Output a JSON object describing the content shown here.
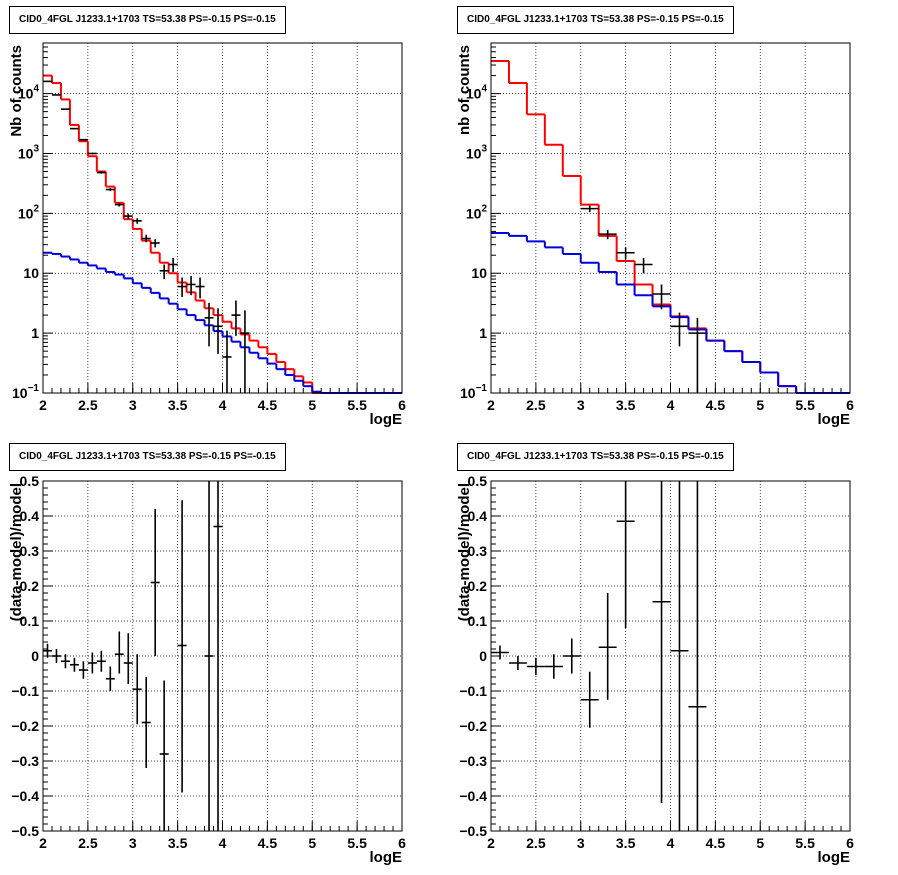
{
  "chart_data": [
    {
      "type": "line",
      "title": "CID0_4FGL J1233.1+1703 TS=53.38 PS=-0.15 PS=-0.15",
      "xlabel": "logE",
      "ylabel": "Nb of counts",
      "xlim": [
        2,
        6
      ],
      "ylim": [
        0.1,
        70000
      ],
      "yscale": "log",
      "grid": true,
      "xticks": [
        "2",
        "2.5",
        "3",
        "3.5",
        "4",
        "4.5",
        "5",
        "5.5",
        "6"
      ],
      "yticks": [
        {
          "v": 0.1,
          "base": "10",
          "exp": "−1"
        },
        {
          "v": 1,
          "label": "1"
        },
        {
          "v": 10,
          "label": "10"
        },
        {
          "v": 100,
          "base": "10",
          "exp": "2"
        },
        {
          "v": 1000,
          "base": "10",
          "exp": "3"
        },
        {
          "v": 10000,
          "base": "10",
          "exp": "4"
        }
      ],
      "bin_width": 0.1,
      "series": [
        {
          "color": "#ff0000",
          "x": [
            2.0,
            2.1,
            2.2,
            2.3,
            2.4,
            2.5,
            2.6,
            2.7,
            2.8,
            2.9,
            3.0,
            3.1,
            3.2,
            3.3,
            3.4,
            3.5,
            3.6,
            3.7,
            3.8,
            3.9,
            4.0,
            4.1,
            4.2,
            4.3,
            4.4,
            4.5,
            4.6,
            4.7,
            4.8,
            4.9,
            5.0
          ],
          "values": [
            20000,
            15000,
            8000,
            3000,
            1600,
            900,
            500,
            280,
            150,
            80,
            55,
            35,
            22,
            15,
            10,
            7,
            4.8,
            3.5,
            2.6,
            2.0,
            1.55,
            1.2,
            0.95,
            0.75,
            0.58,
            0.45,
            0.33,
            0.25,
            0.19,
            0.15,
            0.1
          ]
        },
        {
          "color": "#0000dd",
          "x": [
            2.0,
            2.1,
            2.2,
            2.3,
            2.4,
            2.5,
            2.6,
            2.7,
            2.8,
            2.9,
            3.0,
            3.1,
            3.2,
            3.3,
            3.4,
            3.5,
            3.6,
            3.7,
            3.8,
            3.9,
            4.0,
            4.1,
            4.2,
            4.3,
            4.4,
            4.5,
            4.6,
            4.7,
            4.8,
            4.9,
            5.0,
            5.1,
            5.2,
            5.3,
            5.4,
            5.5,
            5.6,
            5.7,
            5.8,
            5.9
          ],
          "values": [
            22,
            21,
            19,
            17,
            15,
            13.5,
            12,
            10.5,
            9.5,
            8.2,
            6.8,
            5.7,
            4.7,
            3.8,
            3.1,
            2.5,
            2.0,
            1.65,
            1.35,
            1.08,
            0.88,
            0.72,
            0.58,
            0.47,
            0.38,
            0.31,
            0.25,
            0.2,
            0.16,
            0.13,
            0.105,
            0.1,
            0.1,
            0.1,
            0.1,
            0.1,
            0.1,
            0.1,
            0.1,
            0.1
          ]
        }
      ],
      "points": {
        "x": [
          2.05,
          2.15,
          2.25,
          2.35,
          2.45,
          2.55,
          2.65,
          2.75,
          2.85,
          2.95,
          3.05,
          3.15,
          3.25,
          3.35,
          3.45,
          3.55,
          3.65,
          3.75,
          3.85,
          3.95,
          4.05,
          4.15,
          4.25
        ],
        "y": [
          16000,
          9500,
          5500,
          2600,
          1700,
          1000,
          480,
          250,
          140,
          90,
          75,
          38,
          32,
          11,
          14,
          6,
          6.5,
          6,
          1.8,
          1.3,
          0.4,
          2.0,
          1.0
        ],
        "y_lo": [
          15800,
          9400,
          5400,
          2550,
          1660,
          970,
          460,
          235,
          130,
          81,
          67,
          33,
          27,
          8,
          10.5,
          4,
          4.3,
          3.8,
          0.6,
          0.45,
          0.1,
          0.9,
          0.1
        ],
        "y_hi": [
          16200,
          9600,
          5600,
          2650,
          1740,
          1030,
          500,
          265,
          150,
          99,
          83,
          44,
          37,
          14,
          18,
          8.5,
          9,
          8.5,
          3.2,
          2.6,
          1.1,
          3.5,
          2.4
        ]
      }
    },
    {
      "type": "line",
      "title": "CID0_4FGL J1233.1+1703 TS=53.38 PS=-0.15 PS=-0.15",
      "xlabel": "logE",
      "ylabel": "nb of counts",
      "xlim": [
        2,
        6
      ],
      "ylim": [
        0.1,
        70000
      ],
      "yscale": "log",
      "grid": true,
      "xticks": [
        "2",
        "2.5",
        "3",
        "3.5",
        "4",
        "4.5",
        "5",
        "5.5",
        "6"
      ],
      "yticks": [
        {
          "v": 0.1,
          "base": "10",
          "exp": "−1"
        },
        {
          "v": 1,
          "label": "1"
        },
        {
          "v": 10,
          "label": "10"
        },
        {
          "v": 100,
          "base": "10",
          "exp": "2"
        },
        {
          "v": 1000,
          "base": "10",
          "exp": "3"
        },
        {
          "v": 10000,
          "base": "10",
          "exp": "4"
        }
      ],
      "bin_width": 0.2,
      "series": [
        {
          "color": "#ff0000",
          "x": [
            2.0,
            2.2,
            2.4,
            2.6,
            2.8,
            3.0,
            3.2,
            3.4,
            3.6,
            3.8,
            4.0,
            4.2,
            4.4,
            4.6,
            4.8,
            5.0,
            5.2,
            5.4,
            5.6,
            5.8
          ],
          "values": [
            35000,
            15000,
            4500,
            1400,
            420,
            140,
            42,
            16,
            6.5,
            3.0,
            1.9,
            1.2,
            0.75,
            0.5,
            0.33,
            0.22,
            0.13,
            0.1,
            0.1,
            0.1
          ]
        },
        {
          "color": "#0000dd",
          "x": [
            2.0,
            2.2,
            2.4,
            2.6,
            2.8,
            3.0,
            3.2,
            3.4,
            3.6,
            3.8,
            4.0,
            4.2,
            4.4,
            4.6,
            4.8,
            5.0,
            5.2,
            5.4,
            5.6,
            5.8
          ],
          "values": [
            47,
            42,
            34,
            27,
            21,
            15,
            10.5,
            6.5,
            4.3,
            2.8,
            1.85,
            1.15,
            0.75,
            0.5,
            0.33,
            0.22,
            0.13,
            0.1,
            0.1,
            0.1
          ]
        }
      ],
      "points": {
        "x": [
          3.1,
          3.3,
          3.5,
          3.7,
          3.9,
          4.1,
          4.3
        ],
        "y": [
          120,
          45,
          22,
          14,
          4.5,
          1.3,
          1.0
        ],
        "y_lo": [
          105,
          37,
          17,
          10,
          2.5,
          0.6,
          0.1
        ],
        "y_hi": [
          135,
          53,
          27,
          18,
          6.5,
          2.2,
          1.8
        ]
      }
    },
    {
      "type": "scatter",
      "title": "CID0_4FGL J1233.1+1703 TS=53.38 PS=-0.15 PS=-0.15",
      "xlabel": "logE",
      "ylabel": "(data-model)/model",
      "xlim": [
        2,
        6
      ],
      "ylim": [
        -0.5,
        0.5
      ],
      "yscale": "linear",
      "grid": true,
      "xticks": [
        "2",
        "2.5",
        "3",
        "3.5",
        "4",
        "4.5",
        "5",
        "5.5",
        "6"
      ],
      "yticks": [
        "−0.5",
        "−0.4",
        "−0.3",
        "−0.2",
        "−0.1",
        "0",
        "0.1",
        "0.2",
        "0.3",
        "0.4",
        "0.5"
      ],
      "bin_width": 0.1,
      "points": {
        "x": [
          2.05,
          2.15,
          2.25,
          2.35,
          2.45,
          2.55,
          2.65,
          2.75,
          2.85,
          2.95,
          3.05,
          3.15,
          3.25,
          3.35,
          3.55,
          3.85,
          3.95
        ],
        "y": [
          0.015,
          0.0,
          -0.015,
          -0.025,
          -0.04,
          -0.02,
          -0.015,
          -0.065,
          0.005,
          -0.02,
          -0.095,
          -0.19,
          0.21,
          -0.28,
          0.03,
          0.0,
          0.37
        ],
        "y_lo": [
          -0.005,
          -0.02,
          -0.035,
          -0.045,
          -0.065,
          -0.05,
          -0.045,
          -0.1,
          -0.05,
          -0.08,
          -0.195,
          -0.32,
          0.0,
          -0.5,
          -0.39,
          -0.5,
          -0.5
        ],
        "y_hi": [
          0.035,
          0.02,
          0.005,
          -0.005,
          -0.015,
          0.01,
          0.015,
          -0.03,
          0.07,
          0.065,
          0.005,
          -0.06,
          0.42,
          -0.07,
          0.445,
          0.5,
          0.5
        ]
      }
    },
    {
      "type": "scatter",
      "title": "CID0_4FGL J1233.1+1703 TS=53.38 PS=-0.15 PS=-0.15",
      "xlabel": "logE",
      "ylabel": "(data-model)/model",
      "xlim": [
        2,
        6
      ],
      "ylim": [
        -0.5,
        0.5
      ],
      "yscale": "linear",
      "grid": true,
      "xticks": [
        "2",
        "2.5",
        "3",
        "3.5",
        "4",
        "4.5",
        "5",
        "5.5",
        "6"
      ],
      "yticks": [
        "−0.5",
        "−0.4",
        "−0.3",
        "−0.2",
        "−0.1",
        "0",
        "0.1",
        "0.2",
        "0.3",
        "0.4",
        "0.5"
      ],
      "bin_width": 0.2,
      "points": {
        "x": [
          2.1,
          2.3,
          2.5,
          2.7,
          2.9,
          3.1,
          3.3,
          3.5,
          3.9,
          4.1,
          4.3
        ],
        "y": [
          0.01,
          -0.02,
          -0.03,
          -0.03,
          0.0,
          -0.125,
          0.025,
          0.385,
          0.155,
          0.015,
          -0.145
        ],
        "y_lo": [
          -0.01,
          -0.04,
          -0.055,
          -0.065,
          -0.05,
          -0.205,
          -0.125,
          0.08,
          -0.42,
          -0.5,
          -0.5
        ],
        "y_hi": [
          0.03,
          0.0,
          -0.005,
          0.005,
          0.05,
          -0.045,
          0.18,
          0.5,
          0.5,
          0.5,
          0.5
        ]
      }
    }
  ]
}
